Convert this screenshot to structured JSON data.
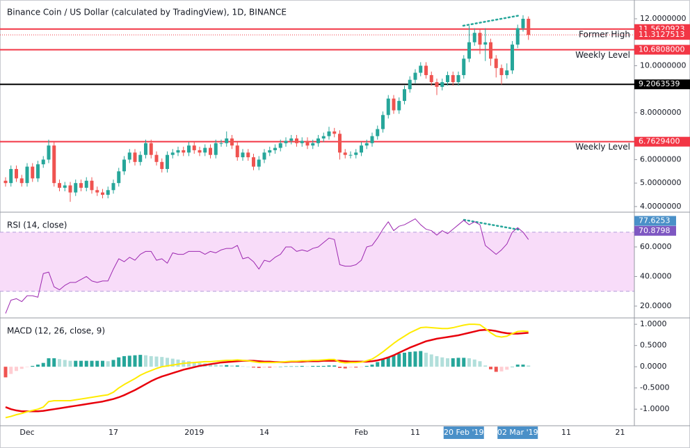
{
  "chart_data": {
    "type": "candlestick",
    "title": "Binance Coin / US Dollar (calculated by TradingView), 1D, BINANCE",
    "categories": [
      null,
      null,
      null,
      null,
      "Dec",
      null,
      null,
      null,
      null,
      null,
      null,
      null,
      null,
      null,
      null,
      null,
      null,
      null,
      null,
      null,
      "17",
      null,
      null,
      null,
      null,
      null,
      null,
      null,
      null,
      null,
      null,
      null,
      null,
      null,
      null,
      "2019",
      null,
      null,
      null,
      null,
      null,
      null,
      null,
      null,
      null,
      null,
      null,
      null,
      "14",
      null,
      null,
      null,
      null,
      null,
      null,
      null,
      null,
      null,
      null,
      null,
      null,
      null,
      null,
      null,
      null,
      null,
      "Feb",
      null,
      null,
      null,
      null,
      null,
      null,
      null,
      null,
      null,
      "11",
      null,
      null,
      null,
      null,
      null,
      null,
      null,
      null,
      "20 Feb '19",
      null,
      null,
      null,
      null,
      null,
      null,
      null,
      null,
      null,
      "02 Mar '19",
      null,
      null,
      null,
      null,
      null,
      null,
      null,
      null,
      "11",
      null,
      null,
      null,
      null,
      null,
      null,
      null,
      null,
      null,
      "21",
      null,
      null
    ],
    "up_color": "#26a69a",
    "down_color": "#ef5350",
    "ohlc": [
      [
        5.1,
        5.25,
        4.85,
        5.0
      ],
      [
        5.0,
        5.75,
        4.85,
        5.6
      ],
      [
        5.6,
        5.75,
        5.05,
        5.2
      ],
      [
        5.2,
        5.35,
        4.85,
        5.0
      ],
      [
        5.0,
        5.85,
        4.85,
        5.7
      ],
      [
        5.7,
        5.85,
        5.05,
        5.2
      ],
      [
        5.2,
        5.95,
        5.05,
        5.8
      ],
      [
        5.8,
        6.15,
        5.65,
        6.0
      ],
      [
        6.0,
        6.85,
        5.85,
        6.6
      ],
      [
        6.6,
        6.75,
        4.85,
        5.0
      ],
      [
        5.0,
        5.15,
        4.65,
        4.8
      ],
      [
        4.8,
        5.05,
        4.65,
        4.9
      ],
      [
        4.9,
        5.05,
        4.2,
        4.6
      ],
      [
        4.6,
        5.15,
        4.45,
        5.0
      ],
      [
        5.0,
        5.15,
        4.65,
        4.8
      ],
      [
        4.8,
        5.25,
        4.65,
        5.1
      ],
      [
        5.1,
        5.25,
        4.55,
        4.7
      ],
      [
        4.7,
        4.85,
        4.45,
        4.6
      ],
      [
        4.6,
        4.75,
        4.35,
        4.5
      ],
      [
        4.5,
        4.85,
        4.35,
        4.7
      ],
      [
        4.7,
        5.15,
        4.55,
        5.0
      ],
      [
        5.0,
        5.65,
        4.85,
        5.5
      ],
      [
        5.5,
        6.15,
        5.35,
        6.0
      ],
      [
        6.0,
        6.45,
        5.85,
        6.3
      ],
      [
        6.3,
        6.45,
        5.75,
        5.9
      ],
      [
        5.9,
        6.35,
        5.75,
        6.2
      ],
      [
        6.2,
        6.85,
        6.05,
        6.7
      ],
      [
        6.7,
        6.85,
        6.05,
        6.2
      ],
      [
        6.2,
        6.35,
        5.75,
        5.9
      ],
      [
        5.9,
        6.05,
        5.45,
        5.6
      ],
      [
        5.6,
        6.35,
        5.45,
        6.2
      ],
      [
        6.2,
        6.45,
        6.05,
        6.3
      ],
      [
        6.3,
        6.55,
        6.15,
        6.4
      ],
      [
        6.4,
        6.55,
        6.15,
        6.3
      ],
      [
        6.3,
        6.75,
        6.15,
        6.6
      ],
      [
        6.6,
        6.75,
        6.25,
        6.4
      ],
      [
        6.4,
        6.55,
        6.15,
        6.3
      ],
      [
        6.3,
        6.65,
        6.15,
        6.5
      ],
      [
        6.5,
        6.65,
        6.05,
        6.2
      ],
      [
        6.2,
        6.85,
        6.05,
        6.7
      ],
      [
        6.7,
        6.85,
        6.55,
        6.7
      ],
      [
        6.7,
        7.2,
        6.55,
        6.9
      ],
      [
        6.9,
        7.05,
        6.45,
        6.6
      ],
      [
        6.6,
        6.75,
        5.95,
        6.1
      ],
      [
        6.1,
        6.45,
        5.95,
        6.3
      ],
      [
        6.3,
        6.45,
        5.95,
        6.1
      ],
      [
        6.1,
        6.25,
        5.55,
        5.7
      ],
      [
        5.7,
        6.15,
        5.55,
        6.0
      ],
      [
        6.0,
        6.45,
        5.85,
        6.3
      ],
      [
        6.3,
        6.55,
        6.15,
        6.4
      ],
      [
        6.4,
        6.65,
        6.25,
        6.5
      ],
      [
        6.5,
        6.85,
        6.35,
        6.7
      ],
      [
        6.7,
        6.95,
        6.55,
        6.8
      ],
      [
        6.8,
        7.05,
        6.65,
        6.9
      ],
      [
        6.9,
        7.05,
        6.55,
        6.7
      ],
      [
        6.7,
        6.95,
        6.55,
        6.8
      ],
      [
        6.8,
        6.95,
        6.45,
        6.6
      ],
      [
        6.6,
        6.85,
        6.45,
        6.7
      ],
      [
        6.7,
        7.05,
        6.55,
        6.9
      ],
      [
        6.9,
        7.15,
        6.75,
        7.0
      ],
      [
        7.0,
        7.4,
        6.85,
        7.2
      ],
      [
        7.2,
        7.35,
        6.95,
        7.1
      ],
      [
        7.1,
        7.25,
        6.0,
        6.3
      ],
      [
        6.3,
        6.45,
        6.05,
        6.2
      ],
      [
        6.2,
        6.35,
        6.05,
        6.2
      ],
      [
        6.2,
        6.45,
        6.05,
        6.3
      ],
      [
        6.3,
        6.75,
        6.15,
        6.6
      ],
      [
        6.6,
        6.85,
        6.45,
        6.7
      ],
      [
        6.7,
        7.15,
        6.55,
        7.0
      ],
      [
        7.0,
        7.45,
        6.85,
        7.3
      ],
      [
        7.3,
        8.05,
        7.15,
        7.9
      ],
      [
        7.9,
        8.75,
        7.75,
        8.6
      ],
      [
        8.6,
        8.75,
        7.95,
        8.1
      ],
      [
        8.1,
        8.65,
        7.95,
        8.5
      ],
      [
        8.5,
        9.15,
        8.35,
        9.0
      ],
      [
        9.0,
        9.55,
        8.85,
        9.4
      ],
      [
        9.4,
        9.85,
        9.25,
        9.7
      ],
      [
        9.7,
        10.15,
        9.55,
        10.0
      ],
      [
        10.0,
        10.15,
        9.45,
        9.6
      ],
      [
        9.6,
        9.75,
        9.15,
        9.3
      ],
      [
        9.3,
        9.45,
        8.75,
        9.1
      ],
      [
        9.1,
        9.45,
        8.95,
        9.3
      ],
      [
        9.3,
        9.75,
        9.15,
        9.6
      ],
      [
        9.6,
        9.75,
        9.15,
        9.3
      ],
      [
        9.3,
        9.75,
        9.15,
        9.6
      ],
      [
        9.6,
        10.45,
        9.45,
        10.3
      ],
      [
        10.3,
        11.7,
        10.15,
        11.0
      ],
      [
        11.0,
        11.6,
        10.85,
        11.4
      ],
      [
        11.4,
        11.55,
        10.5,
        10.9
      ],
      [
        10.9,
        11.6,
        10.2,
        11.0
      ],
      [
        11.0,
        11.15,
        10.0,
        10.3
      ],
      [
        10.3,
        10.45,
        9.5,
        9.9
      ],
      [
        9.9,
        10.05,
        9.2,
        9.6
      ],
      [
        9.6,
        10.1,
        9.45,
        9.8
      ],
      [
        9.8,
        11.05,
        9.65,
        10.9
      ],
      [
        10.9,
        11.75,
        10.75,
        11.6
      ],
      [
        11.6,
        12.15,
        11.45,
        12.0
      ],
      [
        12.0,
        12.1,
        11.1,
        11.31
      ],
      null,
      null,
      null,
      null,
      null,
      null,
      null,
      null,
      null,
      null,
      null,
      null,
      null,
      null,
      null,
      null,
      null,
      null,
      null
    ],
    "ylim": [
      3.76,
      12.8
    ],
    "yticks": [
      {
        "value": 4,
        "label": "4.0000000"
      },
      {
        "value": 5,
        "label": "5.0000000"
      },
      {
        "value": 6,
        "label": "6.0000000"
      },
      {
        "value": 8,
        "label": "8.0000000"
      },
      {
        "value": 10,
        "label": "10.0000000"
      },
      {
        "value": 12,
        "label": "12.0000000"
      }
    ],
    "levels": [
      {
        "value": 11.5620923,
        "label": "11.5620923",
        "text": "Former High",
        "color": "#f23645"
      },
      {
        "value": 10.6808,
        "label": "10.6808000",
        "text": "Weekly Level",
        "color": "#f23645"
      },
      {
        "value": 9.2063539,
        "label": "9.2063539",
        "color": "#000000"
      },
      {
        "value": 6.76294,
        "label": "6.7629400",
        "text": "Weekly Level",
        "color": "#f23645"
      }
    ],
    "last_price": {
      "value": 11.3127513,
      "label": "11.3127513",
      "color": "#f23645"
    },
    "rsi": {
      "title": "RSI (14, close)",
      "color": "#9c27b0",
      "band_color": "#f8dcf9",
      "ylim": [
        12,
        83.5
      ],
      "yticks": [
        {
          "value": 20,
          "label": "20.0000"
        },
        {
          "value": 40,
          "label": "40.0000"
        },
        {
          "value": 60,
          "label": "60.0000"
        }
      ],
      "bands": [
        70,
        30
      ],
      "markers": [
        {
          "value": 77.6253,
          "label": "77.6253",
          "color": "#4a90c8"
        },
        {
          "value": 70.8798,
          "label": "70.8798",
          "color": "#7e57c2"
        }
      ],
      "values": [
        15,
        24,
        25,
        23,
        27,
        27,
        26,
        42,
        43,
        33,
        31,
        34,
        36,
        36,
        38,
        40,
        37,
        36,
        37,
        37,
        45,
        52,
        50,
        53,
        51,
        55,
        57,
        57,
        51,
        52,
        49,
        56,
        55,
        55,
        57,
        57,
        57,
        55,
        57,
        56,
        58,
        59,
        59,
        61,
        52,
        53,
        50,
        45,
        51,
        50,
        53,
        55,
        60,
        60,
        57,
        58,
        57,
        59,
        60,
        63,
        66,
        65,
        48,
        47,
        47,
        48,
        51,
        60,
        61,
        66,
        72,
        77,
        71,
        74,
        75,
        77,
        79,
        75,
        72,
        71,
        68,
        71,
        69,
        72,
        75,
        78,
        75,
        77,
        75,
        61,
        58,
        55,
        58,
        62,
        70,
        73,
        70,
        65,
        null,
        null,
        null,
        null,
        null,
        null,
        null,
        null,
        null,
        null,
        null,
        null,
        null,
        null,
        null,
        null,
        null,
        null,
        null
      ]
    },
    "macd": {
      "title": "MACD (12, 26, close, 9)",
      "ylim": [
        -1.39,
        1.15
      ],
      "yticks": [
        {
          "value": 1,
          "label": "1.0000"
        },
        {
          "value": 0.5,
          "label": "0.5000"
        },
        {
          "value": 0,
          "label": "0.0000"
        },
        {
          "value": -0.5,
          "label": "-0.5000"
        },
        {
          "value": -1,
          "label": "-1.0000"
        }
      ],
      "macd_line": {
        "color": "#ffeb00",
        "values": [
          -1.2,
          -1.17,
          -1.13,
          -1.1,
          -1.06,
          -1.03,
          -1.0,
          -0.95,
          -0.82,
          -0.8,
          -0.8,
          -0.8,
          -0.8,
          -0.78,
          -0.76,
          -0.74,
          -0.72,
          -0.7,
          -0.68,
          -0.66,
          -0.6,
          -0.5,
          -0.42,
          -0.35,
          -0.28,
          -0.2,
          -0.14,
          -0.09,
          -0.04,
          0.0,
          0.02,
          0.04,
          0.06,
          0.08,
          0.09,
          0.1,
          0.11,
          0.12,
          0.12,
          0.13,
          0.14,
          0.15,
          0.15,
          0.16,
          0.15,
          0.14,
          0.12,
          0.1,
          0.1,
          0.1,
          0.1,
          0.11,
          0.12,
          0.13,
          0.13,
          0.14,
          0.14,
          0.15,
          0.15,
          0.16,
          0.17,
          0.17,
          0.11,
          0.09,
          0.1,
          0.1,
          0.11,
          0.14,
          0.18,
          0.26,
          0.35,
          0.45,
          0.55,
          0.64,
          0.72,
          0.8,
          0.86,
          0.92,
          0.93,
          0.92,
          0.91,
          0.9,
          0.9,
          0.92,
          0.95,
          0.98,
          1.0,
          1.0,
          0.99,
          0.9,
          0.8,
          0.72,
          0.7,
          0.72,
          0.78,
          0.83,
          0.84,
          0.83,
          null,
          null,
          null,
          null,
          null,
          null,
          null,
          null,
          null,
          null,
          null,
          null,
          null,
          null,
          null,
          null,
          null,
          null,
          null
        ]
      },
      "signal_line": {
        "color": "#e8000b",
        "values": [
          -0.95,
          -1.0,
          -1.03,
          -1.05,
          -1.05,
          -1.05,
          -1.05,
          -1.04,
          -1.02,
          -1.0,
          -0.98,
          -0.96,
          -0.94,
          -0.92,
          -0.9,
          -0.88,
          -0.86,
          -0.84,
          -0.82,
          -0.79,
          -0.76,
          -0.72,
          -0.67,
          -0.61,
          -0.55,
          -0.48,
          -0.41,
          -0.34,
          -0.28,
          -0.23,
          -0.19,
          -0.15,
          -0.11,
          -0.07,
          -0.04,
          -0.01,
          0.02,
          0.04,
          0.06,
          0.08,
          0.1,
          0.11,
          0.12,
          0.13,
          0.14,
          0.14,
          0.14,
          0.13,
          0.12,
          0.12,
          0.11,
          0.11,
          0.11,
          0.12,
          0.12,
          0.12,
          0.13,
          0.13,
          0.13,
          0.14,
          0.14,
          0.14,
          0.14,
          0.13,
          0.12,
          0.12,
          0.12,
          0.12,
          0.13,
          0.15,
          0.18,
          0.22,
          0.27,
          0.33,
          0.39,
          0.45,
          0.5,
          0.55,
          0.6,
          0.63,
          0.66,
          0.68,
          0.7,
          0.72,
          0.74,
          0.77,
          0.8,
          0.83,
          0.86,
          0.87,
          0.86,
          0.84,
          0.81,
          0.79,
          0.78,
          0.78,
          0.79,
          0.8,
          null,
          null,
          null,
          null,
          null,
          null,
          null,
          null,
          null,
          null,
          null,
          null,
          null,
          null,
          null,
          null,
          null,
          null,
          null
        ]
      },
      "histogram": {
        "colors": [
          "#26a69a",
          "#b2dfdb",
          "#ef5350",
          "#ffcdd2"
        ],
        "values": [
          -0.25,
          -0.17,
          -0.1,
          -0.05,
          -0.01,
          0.02,
          0.05,
          0.09,
          0.2,
          0.2,
          0.18,
          0.16,
          0.14,
          0.14,
          0.14,
          0.14,
          0.14,
          0.14,
          0.14,
          0.13,
          0.16,
          0.22,
          0.25,
          0.26,
          0.27,
          0.28,
          0.27,
          0.25,
          0.24,
          0.23,
          0.21,
          0.19,
          0.17,
          0.15,
          0.13,
          0.11,
          0.09,
          0.08,
          0.06,
          0.05,
          0.04,
          0.04,
          0.03,
          0.03,
          0.01,
          0.0,
          -0.02,
          -0.03,
          -0.02,
          -0.02,
          -0.01,
          0.0,
          0.01,
          0.01,
          0.01,
          0.02,
          0.01,
          0.02,
          0.02,
          0.02,
          0.03,
          0.03,
          -0.03,
          -0.04,
          -0.02,
          -0.02,
          -0.01,
          0.02,
          0.05,
          0.11,
          0.17,
          0.23,
          0.28,
          0.31,
          0.33,
          0.35,
          0.36,
          0.37,
          0.33,
          0.29,
          0.25,
          0.22,
          0.2,
          0.2,
          0.21,
          0.21,
          0.2,
          0.17,
          0.13,
          0.03,
          -0.06,
          -0.12,
          -0.11,
          -0.07,
          0.0,
          0.05,
          0.05,
          0.03,
          null,
          null,
          null,
          null,
          null,
          null,
          null,
          null,
          null,
          null,
          null,
          null,
          null,
          null,
          null,
          null,
          null,
          null,
          null
        ]
      }
    }
  }
}
